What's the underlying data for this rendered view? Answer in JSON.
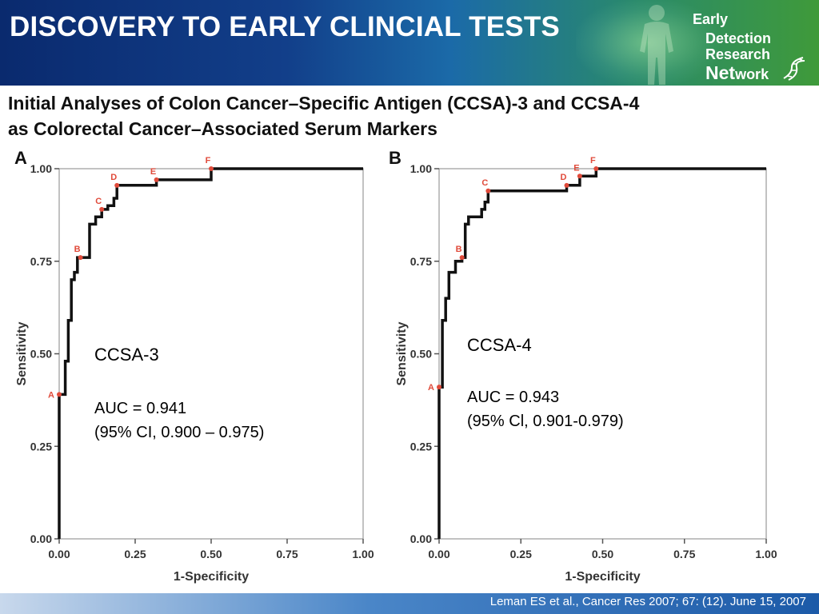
{
  "header": {
    "title": "DISCOVERY TO EARLY CLINCIAL TESTS",
    "logo": {
      "line1": "Early",
      "line2": "Detection",
      "line3": "Research",
      "line4_big": "Net",
      "line4_rest": "work"
    },
    "colors": {
      "dark_blue": "#0a2a6e",
      "green": "#3f9a3a"
    }
  },
  "subtitle": {
    "line1": "Initial Analyses of Colon Cancer–Specific Antigen (CCSA)-3 and CCSA-4",
    "line2": "as Colorectal Cancer–Associated Serum Markers"
  },
  "chart_data": [
    {
      "type": "line",
      "panel_label": "A",
      "xlabel": "1-Specificity",
      "ylabel": "Sensitivity",
      "xlim": [
        0,
        1
      ],
      "ylim": [
        0,
        1
      ],
      "xticks": [
        "0.00",
        "0.25",
        "0.50",
        "0.75",
        "1.00"
      ],
      "yticks": [
        "0.00",
        "0.25",
        "0.50",
        "0.75",
        "1.00"
      ],
      "series": [
        {
          "x": [
            0,
            0,
            0.02,
            0.02,
            0.03,
            0.03,
            0.04,
            0.04,
            0.05,
            0.05,
            0.06,
            0.06,
            0.07,
            0.07,
            0.1,
            0.1,
            0.12,
            0.12,
            0.14,
            0.14,
            0.16,
            0.16,
            0.18,
            0.18,
            0.19,
            0.19,
            0.32,
            0.32,
            0.5,
            0.5,
            1.0
          ],
          "y": [
            0,
            0.39,
            0.39,
            0.48,
            0.48,
            0.59,
            0.59,
            0.7,
            0.7,
            0.72,
            0.72,
            0.76,
            0.76,
            0.76,
            0.76,
            0.85,
            0.85,
            0.87,
            0.87,
            0.89,
            0.89,
            0.9,
            0.9,
            0.92,
            0.92,
            0.955,
            0.955,
            0.97,
            0.97,
            1.0,
            1.0
          ]
        }
      ],
      "points": [
        {
          "label": "A",
          "x": 0.0,
          "y": 0.39
        },
        {
          "label": "B",
          "x": 0.07,
          "y": 0.76
        },
        {
          "label": "C",
          "x": 0.14,
          "y": 0.89
        },
        {
          "label": "D",
          "x": 0.19,
          "y": 0.955
        },
        {
          "label": "E",
          "x": 0.32,
          "y": 0.97
        },
        {
          "label": "F",
          "x": 0.5,
          "y": 1.0
        }
      ],
      "annotation": {
        "name": "CCSA-3",
        "auc": "AUC = 0.941",
        "ci": "(95% CI, 0.900 – 0.975)"
      }
    },
    {
      "type": "line",
      "panel_label": "B",
      "xlabel": "1-Specificity",
      "ylabel": "Sensitivity",
      "xlim": [
        0,
        1
      ],
      "ylim": [
        0,
        1
      ],
      "xticks": [
        "0.00",
        "0.25",
        "0.50",
        "0.75",
        "1.00"
      ],
      "yticks": [
        "0.00",
        "0.25",
        "0.50",
        "0.75",
        "1.00"
      ],
      "series": [
        {
          "x": [
            0,
            0,
            0.01,
            0.01,
            0.02,
            0.02,
            0.03,
            0.03,
            0.04,
            0.04,
            0.05,
            0.05,
            0.07,
            0.07,
            0.08,
            0.08,
            0.09,
            0.09,
            0.1,
            0.1,
            0.13,
            0.13,
            0.14,
            0.14,
            0.15,
            0.15,
            0.39,
            0.39,
            0.43,
            0.43,
            0.48,
            0.48,
            1.0
          ],
          "y": [
            0,
            0.41,
            0.41,
            0.59,
            0.59,
            0.65,
            0.65,
            0.72,
            0.72,
            0.72,
            0.72,
            0.75,
            0.75,
            0.76,
            0.76,
            0.85,
            0.85,
            0.87,
            0.87,
            0.87,
            0.87,
            0.89,
            0.89,
            0.91,
            0.91,
            0.94,
            0.94,
            0.955,
            0.955,
            0.98,
            0.98,
            1.0,
            1.0
          ]
        }
      ],
      "points": [
        {
          "label": "A",
          "x": 0.0,
          "y": 0.41
        },
        {
          "label": "B",
          "x": 0.07,
          "y": 0.76
        },
        {
          "label": "C",
          "x": 0.15,
          "y": 0.94
        },
        {
          "label": "D",
          "x": 0.39,
          "y": 0.955
        },
        {
          "label": "E",
          "x": 0.43,
          "y": 0.98
        },
        {
          "label": "F",
          "x": 0.48,
          "y": 1.0
        }
      ],
      "annotation": {
        "name": "CCSA-4",
        "auc": "AUC = 0.943",
        "ci": "(95% Cl, 0.901-0.979)"
      }
    }
  ],
  "footer": {
    "citation": "Leman ES et al., Cancer Res 2007; 67: (12). June 15, 2007"
  }
}
